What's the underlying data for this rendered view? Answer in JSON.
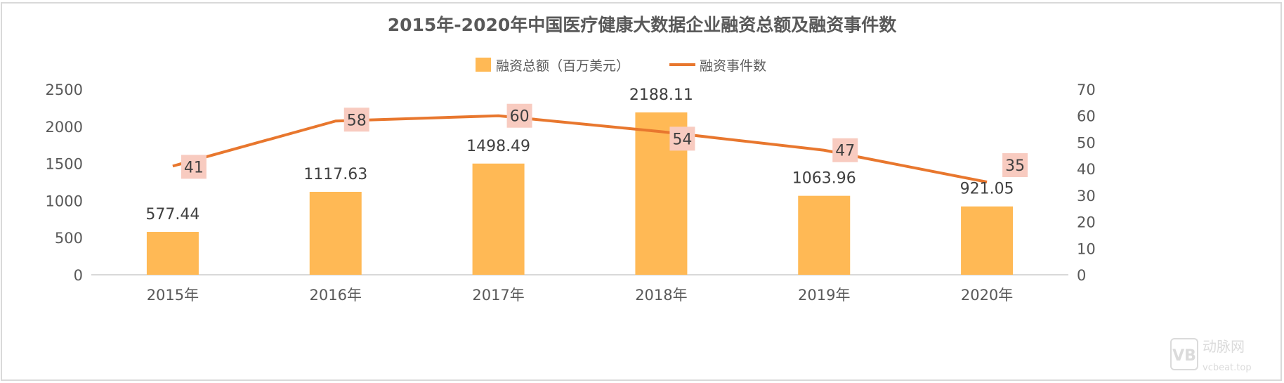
{
  "chart_data": {
    "type": "bar+line",
    "title": "2015年-2020年中国医疗健康大数据企业融资总额及融资事件数",
    "categories": [
      "2015年",
      "2016年",
      "2017年",
      "2018年",
      "2019年",
      "2020年"
    ],
    "series": [
      {
        "name": "融资总额（百万美元）",
        "type": "bar",
        "axis": "left",
        "color": "#FFB955",
        "values": [
          577.44,
          1117.63,
          1498.49,
          2188.11,
          1063.96,
          921.05
        ],
        "labels": [
          "577.44",
          "1117.63",
          "1498.49",
          "2188.11",
          "1063.96",
          "921.05"
        ]
      },
      {
        "name": "融资事件数",
        "type": "line",
        "axis": "right",
        "color": "#E8772E",
        "values": [
          41,
          58,
          60,
          54,
          47,
          35
        ],
        "labels": [
          "41",
          "58",
          "60",
          "54",
          "47",
          "35"
        ]
      }
    ],
    "y_left": {
      "min": 0,
      "max": 2500,
      "ticks": [
        "0",
        "500",
        "1000",
        "1500",
        "2000",
        "2500"
      ]
    },
    "y_right": {
      "min": 0,
      "max": 70,
      "ticks": [
        "0",
        "10",
        "20",
        "30",
        "40",
        "50",
        "60",
        "70"
      ]
    },
    "grid": false,
    "legend": "top-center",
    "label_bg_color": "#F8CBC0"
  },
  "watermark": {
    "text": "动脉网",
    "sub": "vcbeat.top"
  }
}
